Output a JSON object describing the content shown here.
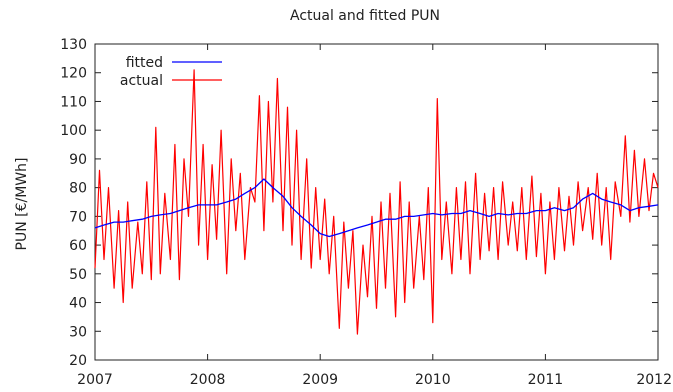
{
  "chart_data": {
    "type": "line",
    "title": "Actual and fitted PUN",
    "xlabel": "",
    "ylabel": "PUN [€/MWh]",
    "xlim": [
      2007,
      2012
    ],
    "ylim": [
      20,
      130
    ],
    "xticks": [
      2007,
      2008,
      2009,
      2010,
      2011,
      2012
    ],
    "xtick_labels": [
      "2007",
      "2008",
      "2009",
      "2010",
      "2011",
      "2012"
    ],
    "yticks": [
      20,
      30,
      40,
      50,
      60,
      70,
      80,
      90,
      100,
      110,
      120,
      130
    ],
    "legend": {
      "placement": "top-left",
      "entries": [
        "fitted",
        "actual"
      ]
    },
    "grid": false,
    "series": [
      {
        "name": "fitted",
        "color": "#0000ff",
        "x": [
          2007.0,
          2007.08,
          2007.17,
          2007.25,
          2007.33,
          2007.42,
          2007.5,
          2007.58,
          2007.67,
          2007.75,
          2007.83,
          2007.92,
          2008.0,
          2008.08,
          2008.17,
          2008.25,
          2008.33,
          2008.42,
          2008.5,
          2008.58,
          2008.67,
          2008.75,
          2008.83,
          2008.92,
          2009.0,
          2009.08,
          2009.17,
          2009.25,
          2009.33,
          2009.42,
          2009.5,
          2009.58,
          2009.67,
          2009.75,
          2009.83,
          2009.92,
          2010.0,
          2010.08,
          2010.17,
          2010.25,
          2010.33,
          2010.42,
          2010.5,
          2010.58,
          2010.67,
          2010.75,
          2010.83,
          2010.92,
          2011.0,
          2011.08,
          2011.17,
          2011.25,
          2011.33,
          2011.42,
          2011.5,
          2011.58,
          2011.67,
          2011.75,
          2011.83,
          2011.92,
          2012.0
        ],
        "y": [
          66,
          67,
          68,
          68,
          68.5,
          69,
          70,
          70.5,
          71,
          72,
          73,
          74,
          74,
          74,
          75,
          76,
          78,
          80,
          83,
          80,
          77,
          73,
          70,
          67,
          64,
          63,
          64,
          65,
          66,
          67,
          68,
          69,
          69,
          70,
          70,
          70.5,
          71,
          70.5,
          71,
          71,
          72,
          71,
          70,
          71,
          70.5,
          71,
          71,
          72,
          72,
          73,
          72,
          73,
          76,
          78,
          76,
          75,
          74,
          72,
          73,
          73.5,
          74
        ]
      },
      {
        "name": "actual",
        "color": "#ff0000",
        "x": [
          2007.0,
          2007.04,
          2007.08,
          2007.12,
          2007.17,
          2007.21,
          2007.25,
          2007.29,
          2007.33,
          2007.38,
          2007.42,
          2007.46,
          2007.5,
          2007.54,
          2007.58,
          2007.62,
          2007.67,
          2007.71,
          2007.75,
          2007.79,
          2007.83,
          2007.88,
          2007.92,
          2007.96,
          2008.0,
          2008.04,
          2008.08,
          2008.12,
          2008.17,
          2008.21,
          2008.25,
          2008.29,
          2008.33,
          2008.38,
          2008.42,
          2008.46,
          2008.5,
          2008.54,
          2008.58,
          2008.62,
          2008.67,
          2008.71,
          2008.75,
          2008.79,
          2008.83,
          2008.88,
          2008.92,
          2008.96,
          2009.0,
          2009.04,
          2009.08,
          2009.12,
          2009.17,
          2009.21,
          2009.25,
          2009.29,
          2009.33,
          2009.38,
          2009.42,
          2009.46,
          2009.5,
          2009.54,
          2009.58,
          2009.62,
          2009.67,
          2009.71,
          2009.75,
          2009.79,
          2009.83,
          2009.88,
          2009.92,
          2009.96,
          2010.0,
          2010.04,
          2010.08,
          2010.12,
          2010.17,
          2010.21,
          2010.25,
          2010.29,
          2010.33,
          2010.38,
          2010.42,
          2010.46,
          2010.5,
          2010.54,
          2010.58,
          2010.62,
          2010.67,
          2010.71,
          2010.75,
          2010.79,
          2010.83,
          2010.88,
          2010.92,
          2010.96,
          2011.0,
          2011.04,
          2011.08,
          2011.12,
          2011.17,
          2011.21,
          2011.25,
          2011.29,
          2011.33,
          2011.38,
          2011.42,
          2011.46,
          2011.5,
          2011.54,
          2011.58,
          2011.62,
          2011.67,
          2011.71,
          2011.75,
          2011.79,
          2011.83,
          2011.88,
          2011.92,
          2011.96,
          2012.0
        ],
        "y": [
          52,
          86,
          55,
          80,
          45,
          72,
          40,
          75,
          45,
          68,
          50,
          82,
          48,
          101,
          50,
          78,
          55,
          95,
          48,
          90,
          70,
          121,
          60,
          95,
          55,
          88,
          62,
          100,
          50,
          90,
          65,
          85,
          55,
          80,
          75,
          112,
          65,
          110,
          75,
          118,
          65,
          108,
          60,
          100,
          55,
          90,
          52,
          80,
          55,
          76,
          50,
          70,
          31,
          68,
          45,
          65,
          29,
          60,
          42,
          70,
          38,
          75,
          45,
          78,
          35,
          82,
          40,
          75,
          45,
          70,
          48,
          80,
          33,
          111,
          55,
          75,
          50,
          80,
          55,
          82,
          50,
          85,
          55,
          78,
          58,
          80,
          55,
          82,
          60,
          75,
          58,
          80,
          55,
          84,
          56,
          78,
          50,
          75,
          55,
          80,
          58,
          77,
          60,
          82,
          65,
          80,
          62,
          85,
          60,
          80,
          55,
          82,
          70,
          98,
          68,
          93,
          70,
          90,
          72,
          85,
          80
        ]
      }
    ]
  }
}
